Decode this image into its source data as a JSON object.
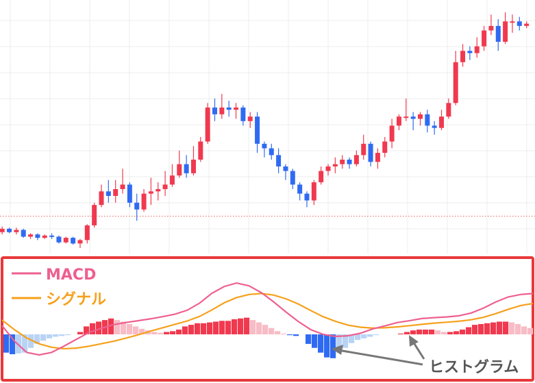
{
  "colors": {
    "up": "#f0394f",
    "down": "#2f6bf2",
    "hist_up_strong": "#f0394f",
    "hist_up_light": "#f7bcc5",
    "hist_down_strong": "#2f6bf2",
    "hist_down_light": "#b8d3f5",
    "macd": "#ee5f8f",
    "signal": "#f6a01a",
    "panel_border": "#e8383a",
    "grid": "#ececec",
    "ref_line": "#e0645a",
    "annotation": "#777777"
  },
  "legend": {
    "macd": "MACD",
    "signal": "シグナル"
  },
  "annotation": {
    "label": "ヒストグラム"
  },
  "chart_data": [
    {
      "type": "candlestick",
      "grid": true,
      "reference_line": "dotted horizontal",
      "candles": [
        [
          0.3,
          0.45,
          0.2,
          0.55
        ],
        [
          0.45,
          0.3,
          0.25,
          0.5
        ],
        [
          0.3,
          0.4,
          0.2,
          0.5
        ],
        [
          0.4,
          0.1,
          0.05,
          0.45
        ],
        [
          0.1,
          0.2,
          0.0,
          0.25
        ],
        [
          0.2,
          0.05,
          -0.05,
          0.25
        ],
        [
          0.05,
          0.15,
          0.0,
          0.2
        ],
        [
          0.15,
          0.1,
          0.0,
          0.25
        ],
        [
          0.1,
          -0.15,
          -0.2,
          0.15
        ],
        [
          -0.15,
          0.05,
          -0.2,
          0.1
        ],
        [
          0.05,
          -0.2,
          -0.25,
          0.1
        ],
        [
          -0.2,
          -0.05,
          -0.4,
          0.0
        ],
        [
          -0.05,
          0.6,
          -0.2,
          0.65
        ],
        [
          0.6,
          1.5,
          0.5,
          1.6
        ],
        [
          1.5,
          2.1,
          1.4,
          2.4
        ],
        [
          2.1,
          1.9,
          1.6,
          2.6
        ],
        [
          1.9,
          2.2,
          1.6,
          2.6
        ],
        [
          2.2,
          2.4,
          2.0,
          3.1
        ],
        [
          2.4,
          1.6,
          1.4,
          2.5
        ],
        [
          1.6,
          1.3,
          0.8,
          2.0
        ],
        [
          1.3,
          2.0,
          1.2,
          2.2
        ],
        [
          2.0,
          2.1,
          1.5,
          2.7
        ],
        [
          2.1,
          2.2,
          1.7,
          2.5
        ],
        [
          2.2,
          2.4,
          1.9,
          3.0
        ],
        [
          2.4,
          2.8,
          2.3,
          3.3
        ],
        [
          2.8,
          3.3,
          2.7,
          3.9
        ],
        [
          3.3,
          2.9,
          2.7,
          3.7
        ],
        [
          2.9,
          3.5,
          2.8,
          4.1
        ],
        [
          3.5,
          4.3,
          3.4,
          4.5
        ],
        [
          4.3,
          5.8,
          4.2,
          6.0
        ],
        [
          5.8,
          5.5,
          5.2,
          6.2
        ],
        [
          5.5,
          5.8,
          5.3,
          6.4
        ],
        [
          5.8,
          5.7,
          5.4,
          6.1
        ],
        [
          5.7,
          5.8,
          5.3,
          6.0
        ],
        [
          5.8,
          5.2,
          5.0,
          5.9
        ],
        [
          5.2,
          5.4,
          4.9,
          5.6
        ],
        [
          5.4,
          4.2,
          3.8,
          5.6
        ],
        [
          4.2,
          4.0,
          3.6,
          4.3
        ],
        [
          4.0,
          3.7,
          3.5,
          4.2
        ],
        [
          3.7,
          3.2,
          2.9,
          4.0
        ],
        [
          3.2,
          3.0,
          2.6,
          3.3
        ],
        [
          3.0,
          2.4,
          2.2,
          3.1
        ],
        [
          2.4,
          2.0,
          1.7,
          2.5
        ],
        [
          2.0,
          1.7,
          1.4,
          2.1
        ],
        [
          1.7,
          2.5,
          1.5,
          2.6
        ],
        [
          2.5,
          3.0,
          2.4,
          3.2
        ],
        [
          3.0,
          3.2,
          2.8,
          3.3
        ],
        [
          3.2,
          3.3,
          2.9,
          3.6
        ],
        [
          3.3,
          3.5,
          3.1,
          3.7
        ],
        [
          3.5,
          3.3,
          3.1,
          3.6
        ],
        [
          3.3,
          3.7,
          3.2,
          3.9
        ],
        [
          3.7,
          4.2,
          3.5,
          4.6
        ],
        [
          4.2,
          3.4,
          3.2,
          4.3
        ],
        [
          3.4,
          3.8,
          3.1,
          4.0
        ],
        [
          3.8,
          4.3,
          3.6,
          4.5
        ],
        [
          4.3,
          5.0,
          4.0,
          5.3
        ],
        [
          5.0,
          5.4,
          4.8,
          5.5
        ],
        [
          5.4,
          5.4,
          5.2,
          6.2
        ],
        [
          5.4,
          5.3,
          4.8,
          5.6
        ],
        [
          5.3,
          5.5,
          5.0,
          5.6
        ],
        [
          5.5,
          5.0,
          4.7,
          5.7
        ],
        [
          5.0,
          4.9,
          4.6,
          5.2
        ],
        [
          4.9,
          5.4,
          4.8,
          5.7
        ],
        [
          5.4,
          6.0,
          5.3,
          6.2
        ],
        [
          6.0,
          7.8,
          5.9,
          8.3
        ],
        [
          7.8,
          8.3,
          7.6,
          8.6
        ],
        [
          8.3,
          8.2,
          7.9,
          8.5
        ],
        [
          8.2,
          8.5,
          8.0,
          8.9
        ],
        [
          8.5,
          9.2,
          8.3,
          9.4
        ],
        [
          9.2,
          9.4,
          9.0,
          9.9
        ],
        [
          9.4,
          8.7,
          8.3,
          9.7
        ],
        [
          8.7,
          9.6,
          8.6,
          10.0
        ],
        [
          9.6,
          9.6,
          9.1,
          9.9
        ],
        [
          9.6,
          9.4,
          9.2,
          9.8
        ],
        [
          9.4,
          9.5,
          9.3,
          9.6
        ]
      ]
    },
    {
      "type": "line",
      "grid": false,
      "legend_position": "top-left",
      "series": [
        {
          "name": "MACD",
          "values": [
            -0.05,
            -0.55,
            -0.92,
            -1.0,
            -0.92,
            -0.72,
            -0.5,
            -0.28,
            -0.14,
            -0.02,
            0.05,
            0.11,
            0.17,
            0.24,
            0.32,
            0.45,
            0.68,
            1.0,
            1.22,
            1.33,
            1.24,
            1.02,
            0.72,
            0.39,
            0.08,
            -0.18,
            -0.33,
            -0.4,
            -0.38,
            -0.3,
            -0.16,
            -0.06,
            0.05,
            0.11,
            0.18,
            0.21,
            0.23,
            0.27,
            0.36,
            0.52,
            0.72,
            0.88,
            0.96,
            0.99
          ]
        },
        {
          "name": "シグナル",
          "values": [
            0.13,
            -0.18,
            -0.45,
            -0.64,
            -0.75,
            -0.8,
            -0.78,
            -0.72,
            -0.64,
            -0.56,
            -0.46,
            -0.35,
            -0.23,
            -0.12,
            -0.01,
            0.1,
            0.25,
            0.46,
            0.69,
            0.86,
            0.96,
            0.99,
            0.94,
            0.82,
            0.65,
            0.44,
            0.24,
            0.09,
            -0.03,
            -0.1,
            -0.13,
            -0.12,
            -0.09,
            -0.05,
            -0.01,
            0.03,
            0.06,
            0.09,
            0.14,
            0.22,
            0.34,
            0.48,
            0.6,
            0.67
          ]
        }
      ]
    },
    {
      "type": "bar",
      "name": "ヒストグラム",
      "values": [
        -0.46,
        -0.5,
        -0.48,
        -0.46,
        -0.34,
        -0.24,
        -0.16,
        -0.1,
        -0.06,
        -0.04,
        -0.02,
        0.0,
        0.06,
        0.2,
        0.28,
        0.32,
        0.36,
        0.4,
        0.36,
        0.32,
        0.26,
        0.2,
        0.14,
        0.1,
        0.06,
        0.04,
        0.06,
        0.08,
        0.12,
        0.2,
        0.24,
        0.28,
        0.28,
        0.3,
        0.32,
        0.34,
        0.34,
        0.38,
        0.4,
        0.42,
        0.36,
        0.3,
        0.24,
        0.16,
        0.08,
        0.02,
        -0.02,
        -0.04,
        0.0,
        -0.24,
        -0.34,
        -0.46,
        -0.58,
        -0.6,
        -0.46,
        -0.34,
        -0.22,
        -0.14,
        -0.1,
        -0.06,
        -0.02,
        0.0,
        0.0,
        0.0,
        0.02,
        0.06,
        0.1,
        0.12,
        0.12,
        0.12,
        0.1,
        0.06,
        0.06,
        0.08,
        0.12,
        0.18,
        0.24,
        0.26,
        0.28,
        0.3,
        0.32,
        0.32,
        0.3,
        0.26,
        0.2,
        0.16
      ]
    }
  ]
}
